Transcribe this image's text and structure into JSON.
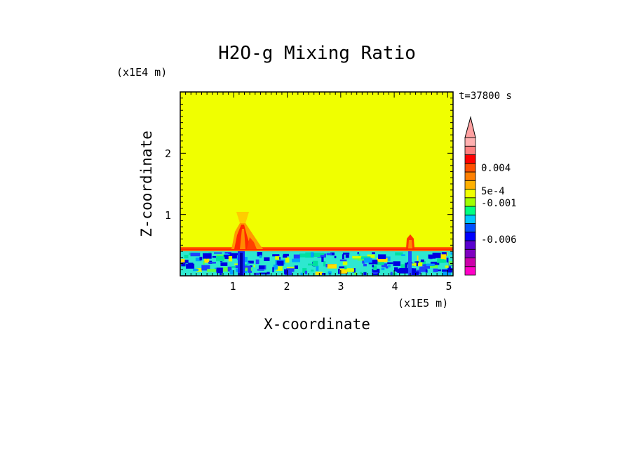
{
  "chart_data": {
    "type": "heatmap",
    "title": "H2O-g Mixing Ratio",
    "xlabel": "X-coordinate",
    "ylabel": "Z-coordinate",
    "x_unit": "(x1E5 m)",
    "y_unit": "(x1E4 m)",
    "time_label": "t=37800 s",
    "xlim": [
      0,
      5.1
    ],
    "ylim": [
      0,
      3
    ],
    "xticks": [
      "1",
      "2",
      "3",
      "4",
      "5"
    ],
    "yticks": [
      "1",
      "2"
    ],
    "background_value_color": "#f0ff00",
    "colorbar": {
      "labels": [
        "0.004",
        "5e-4",
        "-0.001",
        "-0.006"
      ],
      "colors": [
        "#ff00c8",
        "#cc00aa",
        "#7f00c0",
        "#5a00d0",
        "#0000ff",
        "#0050ff",
        "#00c8ff",
        "#00ff80",
        "#a0ff00",
        "#f0ff00",
        "#ffb000",
        "#ff8000",
        "#ff5000",
        "#ff0000",
        "#ff8080",
        "#ffb0b0"
      ],
      "extend_max": true
    },
    "features": [
      {
        "name": "surface layer",
        "z_range": [
          0,
          0.4
        ],
        "dominant": "cyan/green with blue patches"
      },
      {
        "name": "boundary layer top",
        "z": 0.4,
        "dominant": "orange/red"
      },
      {
        "name": "plume",
        "x": 1.15,
        "z_range": [
          0.4,
          1.0
        ],
        "dominant": "red/orange"
      },
      {
        "name": "plume",
        "x": 4.3,
        "z_range": [
          0.4,
          0.6
        ],
        "dominant": "red"
      }
    ]
  }
}
